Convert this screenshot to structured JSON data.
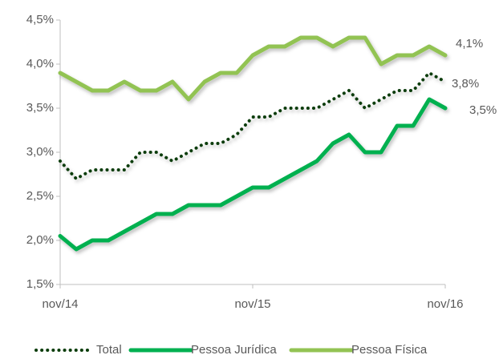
{
  "chart_data": {
    "type": "line",
    "categories": [
      "nov/14",
      null,
      null,
      null,
      null,
      null,
      null,
      null,
      null,
      null,
      null,
      null,
      "nov/15",
      null,
      null,
      null,
      null,
      null,
      null,
      null,
      null,
      null,
      null,
      null,
      "nov/16"
    ],
    "series": [
      {
        "name": "Total",
        "color": "#0b3d0b",
        "dash": "dotted",
        "values": [
          2.9,
          2.7,
          2.8,
          2.8,
          2.8,
          3.0,
          3.0,
          2.9,
          3.0,
          3.1,
          3.1,
          3.2,
          3.4,
          3.4,
          3.5,
          3.5,
          3.5,
          3.6,
          3.7,
          3.5,
          3.6,
          3.7,
          3.7,
          3.9,
          3.8
        ],
        "value_labels": [
          null,
          null,
          null,
          null,
          null,
          null,
          null,
          null,
          null,
          null,
          null,
          null,
          null,
          null,
          null,
          null,
          null,
          null,
          null,
          null,
          null,
          null,
          null,
          null,
          "3,8%"
        ]
      },
      {
        "name": "Pessoa Jurídica",
        "color": "#00b050",
        "dash": "solid",
        "values": [
          2.05,
          1.9,
          2.0,
          2.0,
          2.1,
          2.2,
          2.3,
          2.3,
          2.4,
          2.4,
          2.4,
          2.5,
          2.6,
          2.6,
          2.7,
          2.8,
          2.9,
          3.1,
          3.2,
          3.0,
          3.0,
          3.3,
          3.3,
          3.6,
          3.5
        ],
        "value_labels": [
          null,
          null,
          null,
          null,
          null,
          null,
          null,
          null,
          null,
          null,
          null,
          null,
          null,
          null,
          null,
          null,
          null,
          null,
          null,
          null,
          null,
          null,
          null,
          null,
          "3,5%"
        ]
      },
      {
        "name": "Pessoa Física",
        "color": "#92c353",
        "dash": "solid",
        "values": [
          3.9,
          3.8,
          3.7,
          3.7,
          3.8,
          3.7,
          3.7,
          3.8,
          3.6,
          3.8,
          3.9,
          3.9,
          4.1,
          4.2,
          4.2,
          4.3,
          4.3,
          4.2,
          4.3,
          4.3,
          4.0,
          4.1,
          4.1,
          4.2,
          4.1
        ],
        "value_labels": [
          null,
          null,
          null,
          null,
          null,
          null,
          null,
          null,
          null,
          null,
          null,
          null,
          null,
          null,
          null,
          null,
          null,
          null,
          null,
          null,
          null,
          null,
          null,
          null,
          "4,1%"
        ]
      }
    ],
    "ylim": [
      1.5,
      4.5
    ],
    "yticks": [
      {
        "value": 1.5,
        "label": "1,5%"
      },
      {
        "value": 2.0,
        "label": "2,0%"
      },
      {
        "value": 2.5,
        "label": "2,5%"
      },
      {
        "value": 3.0,
        "label": "3,0%"
      },
      {
        "value": 3.5,
        "label": "3,5%"
      },
      {
        "value": 4.0,
        "label": "4,0%"
      },
      {
        "value": 4.5,
        "label": "4,5%"
      }
    ],
    "grid": false,
    "legend": "bottom"
  }
}
